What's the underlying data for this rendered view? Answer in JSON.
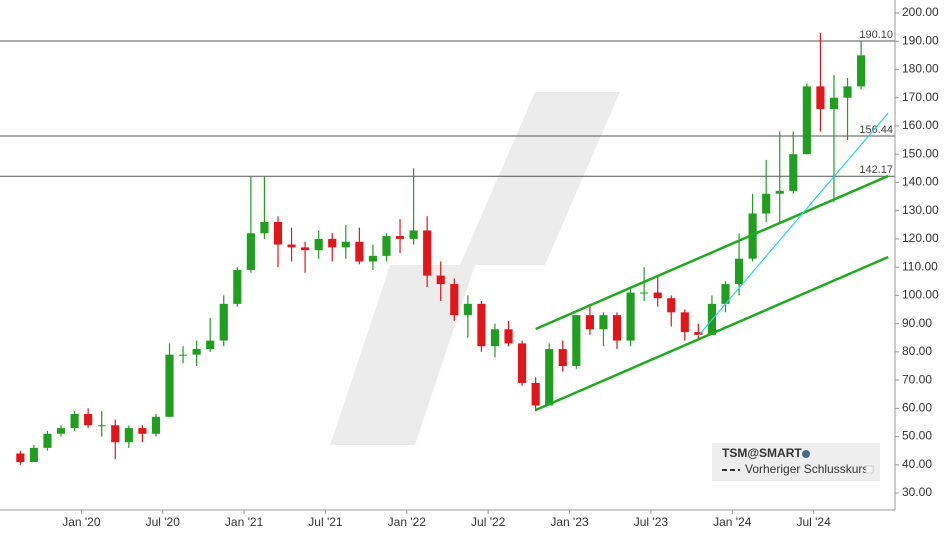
{
  "chart_data": {
    "type": "candlestick",
    "x": [
      "2019-08",
      "2019-09",
      "2019-10",
      "2019-11",
      "2019-12",
      "2020-01",
      "2020-02",
      "2020-03",
      "2020-04",
      "2020-05",
      "2020-06",
      "2020-07",
      "2020-08",
      "2020-09",
      "2020-10",
      "2020-11",
      "2020-12",
      "2021-01",
      "2021-02",
      "2021-03",
      "2021-04",
      "2021-05",
      "2021-06",
      "2021-07",
      "2021-08",
      "2021-09",
      "2021-10",
      "2021-11",
      "2021-12",
      "2022-01",
      "2022-02",
      "2022-03",
      "2022-04",
      "2022-05",
      "2022-06",
      "2022-07",
      "2022-08",
      "2022-09",
      "2022-10",
      "2022-11",
      "2022-12",
      "2023-01",
      "2023-02",
      "2023-03",
      "2023-04",
      "2023-05",
      "2023-06",
      "2023-07",
      "2023-08",
      "2023-09",
      "2023-10",
      "2023-11",
      "2023-12",
      "2024-01",
      "2024-02",
      "2024-03",
      "2024-04",
      "2024-05",
      "2024-06",
      "2024-07",
      "2024-08",
      "2024-09",
      "2024-10"
    ],
    "open": [
      44,
      41,
      46,
      51,
      53,
      58,
      54,
      54,
      48,
      53,
      51,
      57,
      79,
      79,
      81,
      84,
      97,
      109,
      122,
      126,
      118,
      117,
      116,
      120,
      117,
      119,
      112,
      114,
      121,
      120,
      123,
      107,
      104,
      93,
      97,
      82,
      88,
      83,
      69,
      61,
      81,
      75,
      93,
      88,
      93,
      84,
      101,
      101,
      99,
      94,
      87,
      86,
      97,
      104,
      113,
      129,
      136,
      137,
      150,
      174,
      166,
      170,
      174
    ],
    "high": [
      45,
      47,
      52,
      54,
      59,
      60,
      59,
      56,
      54,
      54,
      58,
      83,
      82,
      84,
      92,
      100,
      110,
      142,
      142,
      128,
      124,
      119,
      123,
      122,
      125,
      124,
      118,
      122,
      127,
      145,
      128,
      112,
      106,
      100,
      98,
      90,
      91,
      84,
      71,
      83,
      84,
      93,
      97,
      94,
      94,
      103,
      110,
      107,
      100,
      95,
      90,
      100,
      105,
      122,
      136,
      148,
      158,
      158,
      175,
      193,
      178,
      177,
      190
    ],
    "low": [
      40,
      41,
      45,
      50,
      52,
      53,
      50,
      42,
      46,
      48,
      50,
      57,
      76,
      75,
      80,
      82,
      96,
      108,
      120,
      110,
      112,
      108,
      113,
      112,
      113,
      111,
      109,
      112,
      115,
      118,
      103,
      98,
      91,
      85,
      80,
      78,
      82,
      68,
      59,
      61,
      73,
      74,
      86,
      82,
      81,
      82,
      98,
      96,
      89,
      84,
      84,
      86,
      94,
      100,
      112,
      126,
      126,
      136,
      150,
      158,
      133,
      155,
      173
    ],
    "close": [
      41,
      46,
      51,
      53,
      58,
      54,
      54,
      48,
      53,
      51,
      57,
      79,
      79,
      81,
      84,
      97,
      109,
      122,
      126,
      118,
      117,
      116,
      120,
      117,
      119,
      112,
      114,
      121,
      120,
      123,
      107,
      104,
      93,
      97,
      82,
      88,
      83,
      69,
      61,
      81,
      75,
      93,
      88,
      93,
      84,
      101,
      101,
      99,
      94,
      87,
      86,
      97,
      104,
      113,
      129,
      136,
      137,
      150,
      174,
      166,
      170,
      174,
      185
    ],
    "up_color": "#1f9e1f",
    "down_color": "#e0161b",
    "xlim": [
      "2019-07",
      "2025-01"
    ],
    "xticks": [
      {
        "value": "2020-01",
        "label": "Jan '20"
      },
      {
        "value": "2020-07",
        "label": "Jul '20"
      },
      {
        "value": "2021-01",
        "label": "Jan '21"
      },
      {
        "value": "2021-07",
        "label": "Jul '21"
      },
      {
        "value": "2022-01",
        "label": "Jan '22"
      },
      {
        "value": "2022-07",
        "label": "Jul '22"
      },
      {
        "value": "2023-01",
        "label": "Jan '23"
      },
      {
        "value": "2023-07",
        "label": "Jul '23"
      },
      {
        "value": "2024-01",
        "label": "Jan '24"
      },
      {
        "value": "2024-07",
        "label": "Jul '24"
      }
    ],
    "ylim": [
      24,
      204.6
    ],
    "yticks": [
      {
        "value": 30,
        "label": "30.00"
      },
      {
        "value": 40,
        "label": "40.00"
      },
      {
        "value": 50,
        "label": "50.00"
      },
      {
        "value": 60,
        "label": "60.00"
      },
      {
        "value": 70,
        "label": "70.00"
      },
      {
        "value": 80,
        "label": "80.00"
      },
      {
        "value": 90,
        "label": "90.00"
      },
      {
        "value": 100,
        "label": "100.00"
      },
      {
        "value": 110,
        "label": "110.00"
      },
      {
        "value": 120,
        "label": "120.00"
      },
      {
        "value": 130,
        "label": "130.00"
      },
      {
        "value": 140,
        "label": "140.00"
      },
      {
        "value": 150,
        "label": "150.00"
      },
      {
        "value": 160,
        "label": "160.00"
      },
      {
        "value": 170,
        "label": "170.00"
      },
      {
        "value": 180,
        "label": "180.00"
      },
      {
        "value": 190,
        "label": "190.00"
      },
      {
        "value": 200,
        "label": "200.00"
      }
    ],
    "hlines": [
      {
        "value": 190.1,
        "label": "190.10"
      },
      156.44,
      142.17
    ],
    "trendlines": [
      {
        "color": "#1faa1f",
        "x": [
          "2022-10",
          "2024-12"
        ],
        "y": [
          59.4,
          113.6
        ]
      },
      {
        "color": "#1faa1f",
        "x": [
          "2022-10",
          "2024-12"
        ],
        "y": [
          88.1,
          142.3
        ]
      },
      {
        "color": "#2ed3e6",
        "x": [
          "2023-10",
          "2024-12"
        ],
        "y": [
          85.7,
          164.6
        ]
      }
    ],
    "legend": {
      "title": "TSM@SMART",
      "items": [
        "Vorheriger Schlusskurs"
      ]
    }
  }
}
